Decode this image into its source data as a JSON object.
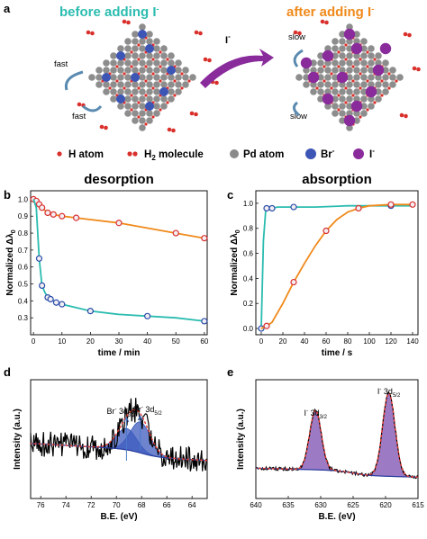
{
  "panel_a": {
    "letter": "a",
    "left_title": "before adding I",
    "right_title": "after adding I",
    "title_superscript": "-",
    "arrow_label": "I",
    "left_annotations": [
      "fast",
      "fast"
    ],
    "right_annotations": [
      "slow",
      "slow"
    ],
    "legend": [
      {
        "label": "H atom",
        "color": "#d9302c"
      },
      {
        "label": "H",
        "sub": "2",
        "suffix": " molecule",
        "color": "#d9302c"
      },
      {
        "label": "Pd atom",
        "color": "#8a8a8a"
      },
      {
        "label": "Br",
        "sup": "-",
        "color": "#3d55b5"
      },
      {
        "label": "I",
        "sup": "-",
        "color": "#8a2b9c"
      }
    ],
    "colors": {
      "left_title": "#2bbcb0",
      "right_title": "#f08a1c",
      "arrow": "#8a2b9c"
    }
  },
  "chart_data": [
    {
      "id": "b",
      "letter": "b",
      "type": "line",
      "title": "desorption",
      "xlabel": "time / min",
      "ylabel": "Normalized Δλ",
      "ylabel_sub": "0",
      "xlim": [
        -1,
        61
      ],
      "ylim": [
        0.2,
        1.05
      ],
      "xticks": [
        0,
        10,
        20,
        30,
        40,
        50,
        60
      ],
      "yticks": [
        0.3,
        0.4,
        0.5,
        0.6,
        0.7,
        0.8,
        0.9,
        1.0
      ],
      "ytick_labels": [
        "0.3",
        "0.4",
        "0.5",
        "0.6",
        "0.7",
        "0.8",
        "0.9",
        "1.0"
      ],
      "series": [
        {
          "color": "#f08a1c",
          "marker_edge": "#d9302c",
          "x": [
            0,
            1,
            2,
            3,
            5,
            7,
            10,
            15,
            30,
            50,
            60
          ],
          "y": [
            1.0,
            0.99,
            0.97,
            0.95,
            0.92,
            0.91,
            0.9,
            0.89,
            0.86,
            0.8,
            0.77
          ],
          "marker_x": [
            0,
            1,
            2,
            3,
            5,
            7,
            10,
            15,
            30,
            50,
            60
          ]
        },
        {
          "color": "#2bbcb0",
          "marker_edge": "#2a4da8",
          "x": [
            0,
            1,
            2,
            3,
            4,
            5,
            6,
            7,
            8,
            10,
            15,
            20,
            30,
            40,
            50,
            60
          ],
          "y": [
            1.0,
            0.95,
            0.65,
            0.49,
            0.45,
            0.42,
            0.41,
            0.4,
            0.39,
            0.38,
            0.36,
            0.34,
            0.32,
            0.31,
            0.3,
            0.28
          ],
          "marker_x": [
            2,
            3,
            5,
            6,
            8,
            10,
            20,
            40,
            60
          ]
        }
      ]
    },
    {
      "id": "c",
      "letter": "c",
      "type": "line",
      "title": "absorption",
      "xlabel": "time / s",
      "ylabel": "Normalized Δλ",
      "ylabel_sub": "0",
      "xlim": [
        -5,
        145
      ],
      "ylim": [
        -0.05,
        1.1
      ],
      "xticks": [
        0,
        20,
        40,
        60,
        80,
        100,
        120,
        140
      ],
      "yticks": [
        0.0,
        0.2,
        0.4,
        0.6,
        0.8,
        1.0
      ],
      "ytick_labels": [
        "0.0",
        "0.2",
        "0.4",
        "0.6",
        "0.8",
        "1.0"
      ],
      "series": [
        {
          "color": "#2bbcb0",
          "marker_edge": "#2a4da8",
          "x": [
            0,
            2,
            4,
            5,
            6,
            8,
            10,
            15,
            20,
            30,
            50,
            80,
            100,
            120,
            140
          ],
          "y": [
            0.0,
            0.7,
            0.93,
            0.96,
            0.96,
            0.96,
            0.96,
            0.97,
            0.97,
            0.97,
            0.97,
            0.98,
            0.98,
            0.98,
            0.98
          ],
          "marker_x": [
            5,
            10,
            30,
            60,
            120
          ]
        },
        {
          "color": "#f08a1c",
          "marker_edge": "#d9302c",
          "x": [
            0,
            5,
            10,
            20,
            30,
            40,
            50,
            60,
            70,
            80,
            90,
            100,
            120,
            140
          ],
          "y": [
            0.0,
            0.02,
            0.05,
            0.2,
            0.37,
            0.52,
            0.66,
            0.78,
            0.87,
            0.93,
            0.96,
            0.98,
            0.99,
            0.99
          ],
          "marker_x": [
            5,
            30,
            60,
            90,
            120,
            140
          ]
        }
      ]
    },
    {
      "id": "d",
      "letter": "d",
      "type": "line",
      "xlabel": "B.E. (eV)",
      "ylabel": "Intensity (a.u.)",
      "xlim": [
        76.8,
        62.8
      ],
      "ylim": [
        0,
        1
      ],
      "xticks": [
        76,
        74,
        72,
        70,
        68,
        66,
        64
      ],
      "peak_labels": [
        {
          "text": "Br",
          "sup": "-",
          "tail": "3d",
          "sub": "3/2",
          "x": 69.2
        },
        {
          "text": "Br",
          "sup": "-",
          "tail": "3d",
          "sub": "5/2",
          "x": 68.1
        }
      ],
      "colors": {
        "raw": "#000000",
        "fit": "#e0392f",
        "peak": "#3d5bbf",
        "baseline": "#2a3fa0"
      }
    },
    {
      "id": "e",
      "letter": "e",
      "type": "line",
      "xlabel": "B.E. (eV)",
      "ylabel": "Intensity (a.u.)",
      "xlim": [
        640,
        615
      ],
      "ylim": [
        0,
        1
      ],
      "xticks": [
        640,
        635,
        630,
        625,
        620,
        615
      ],
      "peak_labels": [
        {
          "text": "I",
          "sup": "-",
          "tail": "3d",
          "sub": "3/2",
          "x": 630.8
        },
        {
          "text": "I",
          "sup": "-",
          "tail": "3d",
          "sub": "5/2",
          "x": 619.5
        }
      ],
      "colors": {
        "raw": "#000000",
        "fit": "#e0392f",
        "peak": "#7b4fb0",
        "baseline": "#2a3fa0"
      }
    }
  ]
}
